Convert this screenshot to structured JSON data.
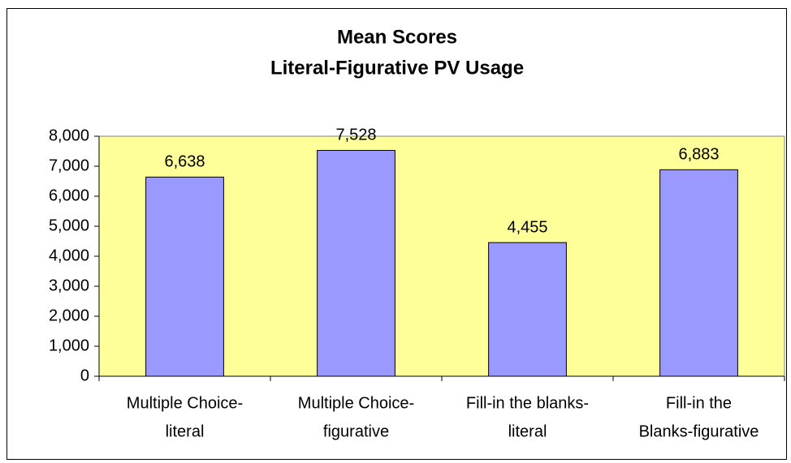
{
  "chart_data": {
    "type": "bar",
    "title": [
      "Mean Scores",
      "Literal-Figurative PV Usage"
    ],
    "categories": [
      [
        "Multiple Choice-",
        "literal"
      ],
      [
        "Multiple Choice-",
        "figurative"
      ],
      [
        "Fill-in the blanks-",
        "literal"
      ],
      [
        "Fill-in the",
        "Blanks-figurative"
      ]
    ],
    "values": [
      6638,
      7528,
      4455,
      6883
    ],
    "value_labels": [
      "6,638",
      "7,528",
      "4,455",
      "6,883"
    ],
    "color": "#9999ff",
    "plot_background": "#ffff99",
    "ylim": [
      0,
      8000
    ],
    "yticks": [
      0,
      {
        "value": 1000,
        "label": "1,000"
      },
      {
        "value": 2000,
        "label": "2,000"
      },
      {
        "value": 3000,
        "label": "3,000"
      },
      {
        "value": 4000,
        "label": "4,000"
      },
      {
        "value": 5000,
        "label": "5,000"
      },
      {
        "value": 6000,
        "label": "6,000"
      },
      {
        "value": 7000,
        "label": "7,000"
      },
      {
        "value": 8000,
        "label": "8,000"
      }
    ],
    "grid": false
  }
}
